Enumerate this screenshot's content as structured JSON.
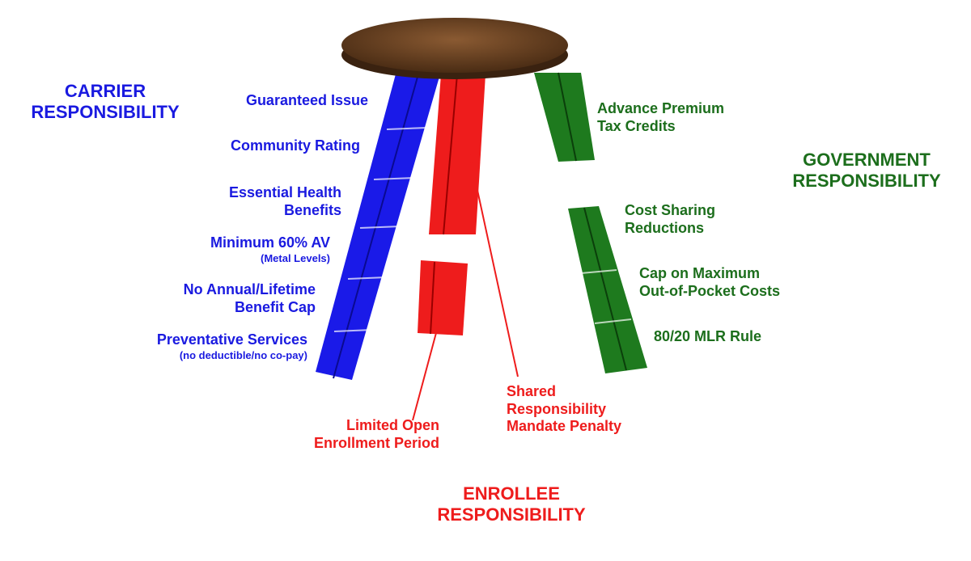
{
  "colors": {
    "carrier": "#1a1ae0",
    "enrollee": "#ee1c1c",
    "government": "#1c6e1c",
    "seat": "#6b4424"
  },
  "carrier": {
    "title_line1": "CARRIER",
    "title_line2": "RESPONSIBILITY",
    "items": [
      {
        "line1": "Guaranteed Issue"
      },
      {
        "line1": "Community Rating"
      },
      {
        "line1": "Essential Health",
        "line2": "Benefits"
      },
      {
        "line1": "Minimum 60% AV",
        "line2": "(Metal Levels)"
      },
      {
        "line1": "No Annual/Lifetime",
        "line2": "Benefit Cap"
      },
      {
        "line1": "Preventative Services",
        "line2": "(no deductible/no co-pay)"
      }
    ]
  },
  "government": {
    "title_line1": "GOVERNMENT",
    "title_line2": "RESPONSIBILITY",
    "items": [
      {
        "line1": "Advance Premium",
        "line2": "Tax Credits"
      },
      {
        "line1": "Cost Sharing",
        "line2": "Reductions"
      },
      {
        "line1": "Cap on Maximum",
        "line2": "Out-of-Pocket Costs"
      },
      {
        "line1": "80/20 MLR Rule"
      }
    ]
  },
  "enrollee": {
    "title_line1": "ENROLLEE",
    "title_line2": "RESPONSIBILITY",
    "items": [
      {
        "line1": "Limited Open",
        "line2": "Enrollment Period"
      },
      {
        "line1": "Shared",
        "line2": "Responsibility",
        "line3": "Mandate Penalty"
      }
    ]
  }
}
